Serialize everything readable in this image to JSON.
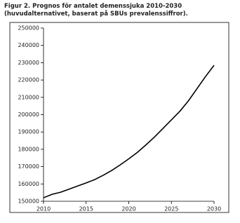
{
  "chart_data": {
    "type": "line",
    "title": "Figur 2. Prognos för antalet demenssjuka 2010-2030 (huvudalternativet, baserat på SBUs prevalenssiffror).",
    "x": [
      2010,
      2011,
      2012,
      2013,
      2014,
      2015,
      2016,
      2017,
      2018,
      2019,
      2020,
      2021,
      2022,
      2023,
      2024,
      2025,
      2026,
      2027,
      2028,
      2029,
      2030
    ],
    "series": [
      {
        "color": "#000000",
        "values": [
          152000,
          154000,
          155200,
          157000,
          158800,
          160600,
          162500,
          165000,
          167800,
          171000,
          174500,
          178200,
          182500,
          187000,
          192000,
          197000,
          202000,
          208000,
          215000,
          222000,
          228500
        ]
      }
    ],
    "xlim": [
      2010,
      2030
    ],
    "xticks": [
      2010,
      2015,
      2020,
      2025,
      2030
    ],
    "ylim": [
      150000,
      250000
    ],
    "yticks": [
      150000,
      160000,
      170000,
      180000,
      190000,
      200000,
      210000,
      220000,
      230000,
      240000,
      250000
    ],
    "grid": false
  }
}
